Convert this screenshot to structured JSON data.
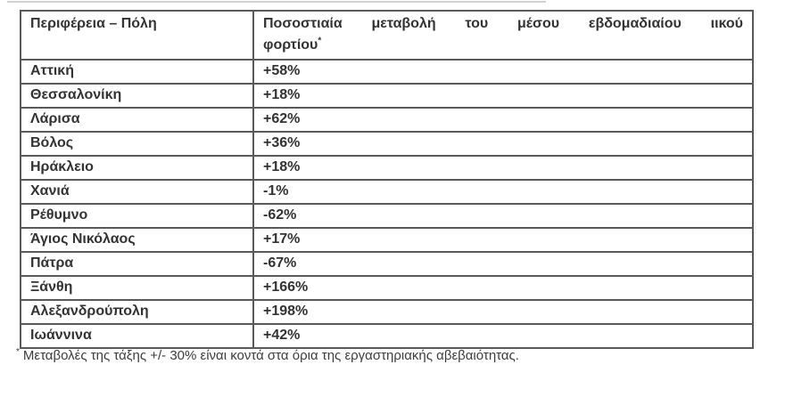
{
  "table": {
    "header": {
      "col1": "Περιφέρεια – Πόλη",
      "col2_line1": "Ποσοστιαία μεταβολή του μέσου εβδομαδιαίου ιικού",
      "col2_line2": "φορτίου",
      "col2_marker": "*",
      "col2_full": "Ποσοστιαία μεταβολή του μέσου εβδομαδιαίου ιικού φορτίου*"
    },
    "rows": [
      {
        "region": "Αττική",
        "change": "+58%"
      },
      {
        "region": "Θεσσαλονίκη",
        "change": "+18%"
      },
      {
        "region": "Λάρισα",
        "change": "+62%"
      },
      {
        "region": "Βόλος",
        "change": "+36%"
      },
      {
        "region": "Ηράκλειο",
        "change": "+18%"
      },
      {
        "region": "Χανιά",
        "change": "-1%"
      },
      {
        "region": "Ρέθυμνο",
        "change": "-62%"
      },
      {
        "region": "Άγιος Νικόλαος",
        "change": "+17%"
      },
      {
        "region": "Πάτρα",
        "change": "-67%"
      },
      {
        "region": "Ξάνθη",
        "change": "+166%"
      },
      {
        "region": "Αλεξανδρούπολη",
        "change": "+198%"
      },
      {
        "region": "Ιωάννινα",
        "change": "+42%"
      }
    ]
  },
  "footnote": {
    "marker": "*",
    "text": "Μεταβολές της τάξης +/- 30% είναι κοντά στα όρια της εργαστηριακής αβεβαιότητας."
  },
  "colors": {
    "text": "#333333",
    "border": "#595959",
    "background": "#ffffff"
  }
}
